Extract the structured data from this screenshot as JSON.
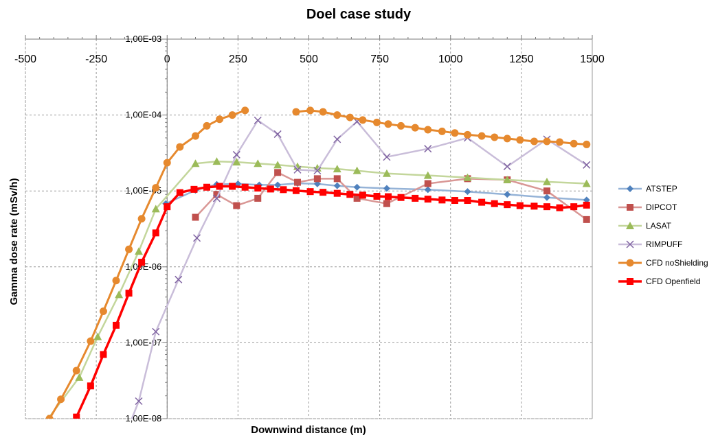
{
  "chart_data": {
    "type": "line",
    "title": "Doel case study",
    "xlabel": "Downwind distance (m)",
    "ylabel": "Gamma dose rate (mSv/h)",
    "xlim": [
      -500,
      1500
    ],
    "ylim": [
      1e-08,
      0.001
    ],
    "y_scale": "log",
    "x_ticks": [
      "-500",
      "-250",
      "0",
      "250",
      "500",
      "750",
      "1000",
      "1250",
      "1500"
    ],
    "y_ticks": [
      "1,00E-08",
      "1,00E-07",
      "1,00E-06",
      "1,00E-05",
      "1,00E-04",
      "1,00E-03"
    ],
    "x_axis_position": "top",
    "y_axis_crosses_at_x": 0,
    "grid": true,
    "legend_position": "right",
    "series": [
      {
        "name": "ATSTEP",
        "color": "#4f81bd",
        "line_color": "#95b3d7",
        "marker": "diamond",
        "points": [
          [
            -5,
            6.8e-06
          ],
          [
            100,
            1.02e-05
          ],
          [
            175,
            1.22e-05
          ],
          [
            250,
            1.24e-05
          ],
          [
            325,
            1.2e-05
          ],
          [
            390,
            1.2e-05
          ],
          [
            460,
            1.26e-05
          ],
          [
            530,
            1.24e-05
          ],
          [
            600,
            1.17e-05
          ],
          [
            670,
            1.12e-05
          ],
          [
            775,
            1.08e-05
          ],
          [
            920,
            1.04e-05
          ],
          [
            1060,
            9.8e-06
          ],
          [
            1200,
            9e-06
          ],
          [
            1340,
            8.2e-06
          ],
          [
            1480,
            7.6e-06
          ]
        ]
      },
      {
        "name": "DIPCOT",
        "color": "#c0504d",
        "line_color": "#d99795",
        "marker": "square",
        "points": [
          [
            100,
            4.5e-06
          ],
          [
            175,
            9e-06
          ],
          [
            245,
            6.4e-06
          ],
          [
            320,
            8e-06
          ],
          [
            390,
            1.75e-05
          ],
          [
            460,
            1.3e-05
          ],
          [
            530,
            1.45e-05
          ],
          [
            600,
            1.45e-05
          ],
          [
            670,
            8e-06
          ],
          [
            775,
            6.8e-06
          ],
          [
            920,
            1.25e-05
          ],
          [
            1060,
            1.45e-05
          ],
          [
            1200,
            1.4e-05
          ],
          [
            1340,
            1e-05
          ],
          [
            1480,
            4.2e-06
          ]
        ]
      },
      {
        "name": "LASAT",
        "color": "#9bbb59",
        "line_color": "#c3d69b",
        "marker": "triangle",
        "points": [
          [
            -420,
            1e-08
          ],
          [
            -310,
            3.5e-08
          ],
          [
            -245,
            1.2e-07
          ],
          [
            -170,
            4.3e-07
          ],
          [
            -100,
            1.6e-06
          ],
          [
            -40,
            5.8e-06
          ],
          [
            100,
            2.3e-05
          ],
          [
            175,
            2.45e-05
          ],
          [
            245,
            2.4e-05
          ],
          [
            320,
            2.3e-05
          ],
          [
            390,
            2.2e-05
          ],
          [
            460,
            2.1e-05
          ],
          [
            530,
            2e-05
          ],
          [
            600,
            1.95e-05
          ],
          [
            670,
            1.85e-05
          ],
          [
            775,
            1.7e-05
          ],
          [
            920,
            1.6e-05
          ],
          [
            1060,
            1.5e-05
          ],
          [
            1200,
            1.4e-05
          ],
          [
            1340,
            1.32e-05
          ],
          [
            1480,
            1.25e-05
          ]
        ]
      },
      {
        "name": "RIMPUFF",
        "color": "#8064a2",
        "line_color": "#c9bdd9",
        "marker": "cross",
        "points": [
          [
            -135,
            8e-09
          ],
          [
            -100,
            1.7e-08
          ],
          [
            -40,
            1.4e-07
          ],
          [
            40,
            6.8e-07
          ],
          [
            105,
            2.4e-06
          ],
          [
            175,
            8e-06
          ],
          [
            245,
            3e-05
          ],
          [
            320,
            8.5e-05
          ],
          [
            390,
            5.6e-05
          ],
          [
            460,
            1.9e-05
          ],
          [
            530,
            1.85e-05
          ],
          [
            600,
            4.8e-05
          ],
          [
            670,
            8.2e-05
          ],
          [
            775,
            2.8e-05
          ],
          [
            920,
            3.6e-05
          ],
          [
            1060,
            5e-05
          ],
          [
            1200,
            2.1e-05
          ],
          [
            1340,
            4.8e-05
          ],
          [
            1480,
            2.2e-05
          ]
        ]
      },
      {
        "name": "CFD noShielding",
        "color": "#e6892e",
        "line_color": "#e6892e",
        "marker": "circle",
        "segments": [
          [
            [
              -415,
              1e-08
            ],
            [
              -375,
              1.8e-08
            ],
            [
              -320,
              4.3e-08
            ],
            [
              -270,
              1.05e-07
            ],
            [
              -225,
              2.6e-07
            ],
            [
              -180,
              6.6e-07
            ],
            [
              -135,
              1.7e-06
            ],
            [
              -90,
              4.3e-06
            ],
            [
              -40,
              1.1e-05
            ],
            [
              0,
              2.35e-05
            ],
            [
              45,
              3.8e-05
            ],
            [
              100,
              5.3e-05
            ],
            [
              140,
              7.2e-05
            ],
            [
              185,
              8.8e-05
            ],
            [
              230,
              0.0001
            ],
            [
              275,
              0.000115
            ]
          ],
          [
            [
              455,
              0.00011
            ],
            [
              505,
              0.000115
            ],
            [
              550,
              0.00011
            ],
            [
              600,
              0.0001
            ],
            [
              645,
              9.3e-05
            ],
            [
              690,
              8.6e-05
            ],
            [
              740,
              8e-05
            ],
            [
              780,
              7.6e-05
            ],
            [
              825,
              7.2e-05
            ],
            [
              875,
              6.8e-05
            ],
            [
              920,
              6.4e-05
            ],
            [
              970,
              6.1e-05
            ],
            [
              1015,
              5.8e-05
            ],
            [
              1060,
              5.5e-05
            ],
            [
              1110,
              5.3e-05
            ],
            [
              1155,
              5.1e-05
            ],
            [
              1200,
              4.9e-05
            ],
            [
              1245,
              4.7e-05
            ],
            [
              1295,
              4.5e-05
            ],
            [
              1340,
              4.5e-05
            ],
            [
              1385,
              4.4e-05
            ],
            [
              1435,
              4.2e-05
            ],
            [
              1480,
              4.1e-05
            ]
          ]
        ]
      },
      {
        "name": "CFD Openfield",
        "color": "#ff0000",
        "line_color": "#ff0000",
        "marker": "square",
        "points": [
          [
            -320,
            1.05e-08
          ],
          [
            -270,
            2.7e-08
          ],
          [
            -225,
            7e-08
          ],
          [
            -180,
            1.7e-07
          ],
          [
            -135,
            4.5e-07
          ],
          [
            -90,
            1.15e-06
          ],
          [
            -40,
            2.8e-06
          ],
          [
            0,
            6.2e-06
          ],
          [
            45,
            9.5e-06
          ],
          [
            95,
            1.05e-05
          ],
          [
            140,
            1.12e-05
          ],
          [
            185,
            1.15e-05
          ],
          [
            230,
            1.15e-05
          ],
          [
            275,
            1.12e-05
          ],
          [
            320,
            1.09e-05
          ],
          [
            365,
            1.06e-05
          ],
          [
            410,
            1.04e-05
          ],
          [
            455,
            1.01e-05
          ],
          [
            505,
            9.8e-06
          ],
          [
            550,
            9.6e-06
          ],
          [
            600,
            9.3e-06
          ],
          [
            645,
            9e-06
          ],
          [
            690,
            8.8e-06
          ],
          [
            740,
            8.5e-06
          ],
          [
            780,
            8.4e-06
          ],
          [
            825,
            8.2e-06
          ],
          [
            875,
            8e-06
          ],
          [
            920,
            7.8e-06
          ],
          [
            970,
            7.6e-06
          ],
          [
            1015,
            7.5e-06
          ],
          [
            1060,
            7.5e-06
          ],
          [
            1110,
            7.1e-06
          ],
          [
            1155,
            6.8e-06
          ],
          [
            1200,
            6.6e-06
          ],
          [
            1245,
            6.4e-06
          ],
          [
            1295,
            6.3e-06
          ],
          [
            1340,
            6.2e-06
          ],
          [
            1385,
            6e-06
          ],
          [
            1435,
            6.2e-06
          ],
          [
            1480,
            6.5e-06
          ]
        ]
      }
    ]
  }
}
